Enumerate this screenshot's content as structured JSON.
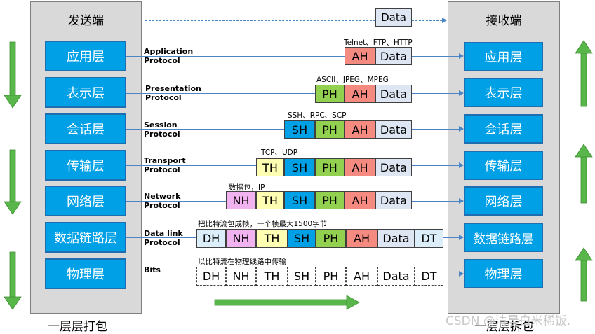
{
  "sender": {
    "title": "发送端",
    "caption": "一层层打包"
  },
  "receiver": {
    "title": "接收端",
    "caption": "一层层拆包"
  },
  "top_data": "Data",
  "layers": [
    "应用层",
    "表示层",
    "会话层",
    "传输层",
    "网络层",
    "数据链路层",
    "物理层"
  ],
  "protocols": [
    {
      "l1": "Application",
      "l2": "Protocol"
    },
    {
      "l1": "Presentation",
      "l2": "Protocol"
    },
    {
      "l1": "Session",
      "l2": "Protocol"
    },
    {
      "l1": "Transport",
      "l2": "Protocol"
    },
    {
      "l1": "Network",
      "l2": "Protocol"
    },
    {
      "l1": "Data link",
      "l2": "Protocol"
    },
    {
      "l1": "Bits",
      "l2": ""
    }
  ],
  "notes": [
    "Telnet、FTP、HTTP",
    "ASCII、JPEG、MPEG",
    "SSH、RPC、SCP",
    "TCP、UDP",
    "数据包，IP",
    "把比特流包成帧，一个帧最大1500字节",
    "以比特流在物理线路中传输"
  ],
  "headers": {
    "DH": "DH",
    "NH": "NH",
    "TH": "TH",
    "SH": "SH",
    "PH": "PH",
    "AH": "AH",
    "Data": "Data",
    "DT": "DT"
  },
  "colors": {
    "layer_fill": "#00a0e6",
    "panel": "#d9d9d9",
    "DH": "#dbeef9",
    "NH": "#f0b3f0",
    "TH": "#ffffb3",
    "SH": "#00a0e6",
    "PH": "#92d050",
    "AH": "#f48a80",
    "Data": "#dde6f2",
    "DT": "#dbeef9",
    "green_arrow": "#59b64a"
  },
  "watermark": "CSDN @清晨白米稀饭."
}
